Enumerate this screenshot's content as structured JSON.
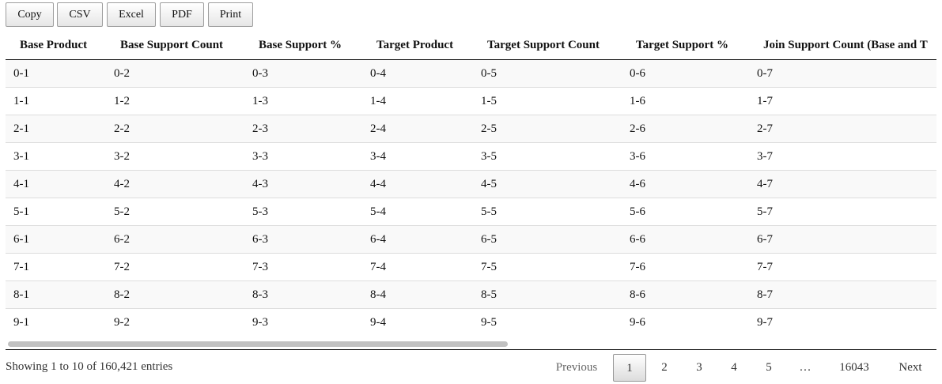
{
  "toolbar": {
    "buttons": [
      "Copy",
      "CSV",
      "Excel",
      "PDF",
      "Print"
    ]
  },
  "table": {
    "headers": [
      "Base Product",
      "Base Support Count",
      "Base Support %",
      "Target Product",
      "Target Support Count",
      "Target Support %",
      "Join Support Count (Base and T"
    ],
    "rows": [
      [
        "0-1",
        "0-2",
        "0-3",
        "0-4",
        "0-5",
        "0-6",
        "0-7"
      ],
      [
        "1-1",
        "1-2",
        "1-3",
        "1-4",
        "1-5",
        "1-6",
        "1-7"
      ],
      [
        "2-1",
        "2-2",
        "2-3",
        "2-4",
        "2-5",
        "2-6",
        "2-7"
      ],
      [
        "3-1",
        "3-2",
        "3-3",
        "3-4",
        "3-5",
        "3-6",
        "3-7"
      ],
      [
        "4-1",
        "4-2",
        "4-3",
        "4-4",
        "4-5",
        "4-6",
        "4-7"
      ],
      [
        "5-1",
        "5-2",
        "5-3",
        "5-4",
        "5-5",
        "5-6",
        "5-7"
      ],
      [
        "6-1",
        "6-2",
        "6-3",
        "6-4",
        "6-5",
        "6-6",
        "6-7"
      ],
      [
        "7-1",
        "7-2",
        "7-3",
        "7-4",
        "7-5",
        "7-6",
        "7-7"
      ],
      [
        "8-1",
        "8-2",
        "8-3",
        "8-4",
        "8-5",
        "8-6",
        "8-7"
      ],
      [
        "9-1",
        "9-2",
        "9-3",
        "9-4",
        "9-5",
        "9-6",
        "9-7"
      ]
    ]
  },
  "footer": {
    "info": "Showing 1 to 10 of 160,421 entries",
    "pagination": {
      "previous": "Previous",
      "pages": [
        "1",
        "2",
        "3",
        "4",
        "5"
      ],
      "ellipsis": "…",
      "last_page": "16043",
      "next": "Next",
      "current_page": "1"
    }
  }
}
